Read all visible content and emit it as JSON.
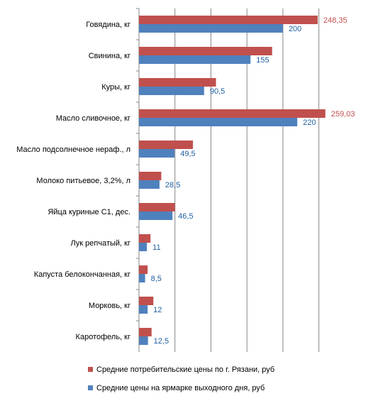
{
  "chart_data": {
    "type": "bar",
    "orientation": "horizontal",
    "categories": [
      "Говядина, кг",
      "Свинина, кг",
      "Куры, кг",
      "Масло сливочное,  кг",
      "Масло подсолнечное  нераф., л",
      "Молоко питьевое, 3,2%, л",
      "Яйца куриные С1, дес.",
      "Лук репчатый, кг",
      "Капуста белокончанная, кг",
      "Морковь,  кг",
      "Каротофель, кг"
    ],
    "series": [
      {
        "name": "Средние  потребительские  цены по г. Рязани, руб",
        "color": "#C0504D",
        "label_color": "#C0504D",
        "values": [
          248.35,
          185,
          107,
          259.03,
          75,
          31,
          50,
          16,
          12,
          20,
          17.5
        ],
        "data_labels": [
          "248,35",
          "",
          "",
          "259,03",
          "",
          "",
          "",
          "",
          "",
          "",
          ""
        ]
      },
      {
        "name": "Средние  цены на ярмарке выходного дня,  руб",
        "color": "#4F81BD",
        "label_color": "#1F5F9F",
        "values": [
          200,
          155,
          90.5,
          220,
          49.5,
          28.5,
          46.5,
          11,
          8.5,
          12,
          12.5
        ],
        "data_labels": [
          "200",
          "155",
          "90,5",
          "220",
          "49,5",
          "28,5",
          "46,5",
          "11",
          "8,5",
          "12",
          "12,5"
        ]
      }
    ],
    "xlim": [
      0,
      300
    ],
    "grid": true,
    "gridline_color": "#868686",
    "legend_position": "bottom"
  }
}
